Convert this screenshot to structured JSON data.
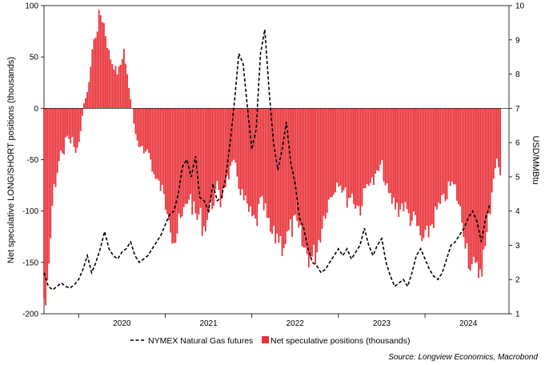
{
  "chart_data": {
    "type": "bar+line",
    "title": "",
    "ylabel_left": "Net speculative LONG/SHORT positions (thousands)",
    "ylabel_right": "USD/MMBtu",
    "ylim_left": [
      -200,
      100
    ],
    "ylim_right": [
      1,
      10
    ],
    "yticks_left": [
      "100",
      "50",
      "0",
      "-50",
      "-100",
      "-150",
      "-200"
    ],
    "yticks_right": [
      "10",
      "9",
      "8",
      "7",
      "6",
      "5",
      "4",
      "3",
      "2",
      "1"
    ],
    "x_range": [
      2019.6,
      2024.97
    ],
    "x_tick_labels": [
      {
        "label": "2020",
        "pos": 2020.5
      },
      {
        "label": "2021",
        "pos": 2021.5
      },
      {
        "label": "2022",
        "pos": 2022.5
      },
      {
        "label": "2023",
        "pos": 2023.5
      },
      {
        "label": "2024",
        "pos": 2024.5
      }
    ],
    "x_year_boundaries": [
      2020,
      2021,
      2022,
      2023,
      2024
    ],
    "series": [
      {
        "name": "Net speculative positions (thousands)",
        "kind": "bar",
        "color": "#e8333a",
        "x_start": 2019.6,
        "x_end": 2024.88,
        "points": [
          [
            2019.6,
            -190
          ],
          [
            2019.63,
            -195
          ],
          [
            2019.66,
            -160
          ],
          [
            2019.7,
            -90
          ],
          [
            2019.73,
            -75
          ],
          [
            2019.76,
            -60
          ],
          [
            2019.8,
            -40
          ],
          [
            2019.83,
            -45
          ],
          [
            2019.86,
            -25
          ],
          [
            2019.9,
            -35
          ],
          [
            2019.93,
            -30
          ],
          [
            2019.96,
            -45
          ],
          [
            2020.0,
            -40
          ],
          [
            2020.03,
            -15
          ],
          [
            2020.06,
            5
          ],
          [
            2020.1,
            15
          ],
          [
            2020.13,
            35
          ],
          [
            2020.16,
            60
          ],
          [
            2020.2,
            75
          ],
          [
            2020.23,
            88
          ],
          [
            2020.26,
            95
          ],
          [
            2020.29,
            85
          ],
          [
            2020.32,
            70
          ],
          [
            2020.35,
            55
          ],
          [
            2020.39,
            45
          ],
          [
            2020.42,
            40
          ],
          [
            2020.45,
            35
          ],
          [
            2020.49,
            45
          ],
          [
            2020.52,
            60
          ],
          [
            2020.55,
            40
          ],
          [
            2020.58,
            20
          ],
          [
            2020.62,
            0
          ],
          [
            2020.65,
            -25
          ],
          [
            2020.69,
            -40
          ],
          [
            2020.73,
            -35
          ],
          [
            2020.77,
            -45
          ],
          [
            2020.8,
            -40
          ],
          [
            2020.84,
            -55
          ],
          [
            2020.88,
            -70
          ],
          [
            2020.92,
            -75
          ],
          [
            2020.96,
            -80
          ],
          [
            2021.0,
            -95
          ],
          [
            2021.04,
            -100
          ],
          [
            2021.08,
            -125
          ],
          [
            2021.12,
            -130
          ],
          [
            2021.16,
            -115
          ],
          [
            2021.2,
            -110
          ],
          [
            2021.24,
            -95
          ],
          [
            2021.28,
            -85
          ],
          [
            2021.32,
            -100
          ],
          [
            2021.36,
            -110
          ],
          [
            2021.4,
            -105
          ],
          [
            2021.44,
            -120
          ],
          [
            2021.48,
            -110
          ],
          [
            2021.52,
            -100
          ],
          [
            2021.56,
            -90
          ],
          [
            2021.6,
            -80
          ],
          [
            2021.64,
            -95
          ],
          [
            2021.68,
            -75
          ],
          [
            2021.72,
            -70
          ],
          [
            2021.76,
            -60
          ],
          [
            2021.8,
            -55
          ],
          [
            2021.85,
            -75
          ],
          [
            2021.9,
            -90
          ],
          [
            2021.95,
            -100
          ],
          [
            2022.0,
            -110
          ],
          [
            2022.05,
            -115
          ],
          [
            2022.1,
            -95
          ],
          [
            2022.15,
            -100
          ],
          [
            2022.2,
            -120
          ],
          [
            2022.25,
            -130
          ],
          [
            2022.3,
            -125
          ],
          [
            2022.35,
            -135
          ],
          [
            2022.4,
            -130
          ],
          [
            2022.45,
            -120
          ],
          [
            2022.5,
            -115
          ],
          [
            2022.55,
            -125
          ],
          [
            2022.6,
            -140
          ],
          [
            2022.65,
            -145
          ],
          [
            2022.7,
            -150
          ],
          [
            2022.75,
            -140
          ],
          [
            2022.8,
            -120
          ],
          [
            2022.85,
            -100
          ],
          [
            2022.9,
            -90
          ],
          [
            2022.95,
            -80
          ],
          [
            2023.0,
            -70
          ],
          [
            2023.05,
            -80
          ],
          [
            2023.1,
            -90
          ],
          [
            2023.15,
            -85
          ],
          [
            2023.2,
            -95
          ],
          [
            2023.25,
            -100
          ],
          [
            2023.3,
            -85
          ],
          [
            2023.35,
            -70
          ],
          [
            2023.4,
            -75
          ],
          [
            2023.45,
            -65
          ],
          [
            2023.5,
            -55
          ],
          [
            2023.55,
            -80
          ],
          [
            2023.6,
            -90
          ],
          [
            2023.65,
            -95
          ],
          [
            2023.7,
            -100
          ],
          [
            2023.75,
            -95
          ],
          [
            2023.8,
            -105
          ],
          [
            2023.85,
            -110
          ],
          [
            2023.9,
            -115
          ],
          [
            2023.95,
            -130
          ],
          [
            2024.0,
            -135
          ],
          [
            2024.05,
            -120
          ],
          [
            2024.1,
            -110
          ],
          [
            2024.15,
            -100
          ],
          [
            2024.2,
            -95
          ],
          [
            2024.25,
            -85
          ],
          [
            2024.3,
            -75
          ],
          [
            2024.35,
            -80
          ],
          [
            2024.4,
            -100
          ],
          [
            2024.45,
            -120
          ],
          [
            2024.5,
            -145
          ],
          [
            2024.55,
            -160
          ],
          [
            2024.6,
            -165
          ],
          [
            2024.65,
            -155
          ],
          [
            2024.7,
            -140
          ],
          [
            2024.75,
            -100
          ],
          [
            2024.8,
            -60
          ],
          [
            2024.84,
            -50
          ],
          [
            2024.88,
            -80
          ]
        ]
      },
      {
        "name": "NYMEX Natural Gas futures",
        "kind": "line",
        "color": "#000000",
        "style": "dashed",
        "points": [
          [
            2019.6,
            2.2
          ],
          [
            2019.65,
            1.8
          ],
          [
            2019.7,
            1.7
          ],
          [
            2019.75,
            1.8
          ],
          [
            2019.8,
            1.9
          ],
          [
            2019.85,
            1.8
          ],
          [
            2019.9,
            1.75
          ],
          [
            2019.95,
            1.85
          ],
          [
            2020.0,
            2.0
          ],
          [
            2020.05,
            2.3
          ],
          [
            2020.1,
            2.7
          ],
          [
            2020.15,
            2.2
          ],
          [
            2020.2,
            2.5
          ],
          [
            2020.25,
            2.9
          ],
          [
            2020.3,
            3.4
          ],
          [
            2020.35,
            2.9
          ],
          [
            2020.4,
            2.7
          ],
          [
            2020.45,
            2.6
          ],
          [
            2020.5,
            2.8
          ],
          [
            2020.55,
            2.9
          ],
          [
            2020.6,
            3.1
          ],
          [
            2020.65,
            2.7
          ],
          [
            2020.7,
            2.5
          ],
          [
            2020.75,
            2.6
          ],
          [
            2020.8,
            2.7
          ],
          [
            2020.85,
            2.9
          ],
          [
            2020.9,
            3.1
          ],
          [
            2020.95,
            3.3
          ],
          [
            2021.0,
            3.6
          ],
          [
            2021.05,
            3.9
          ],
          [
            2021.1,
            4.0
          ],
          [
            2021.15,
            4.5
          ],
          [
            2021.2,
            5.3
          ],
          [
            2021.25,
            5.5
          ],
          [
            2021.3,
            5.0
          ],
          [
            2021.35,
            5.6
          ],
          [
            2021.4,
            4.4
          ],
          [
            2021.45,
            4.3
          ],
          [
            2021.5,
            4.0
          ],
          [
            2021.55,
            4.8
          ],
          [
            2021.6,
            4.3
          ],
          [
            2021.65,
            4.4
          ],
          [
            2021.7,
            5.0
          ],
          [
            2021.75,
            6.0
          ],
          [
            2021.8,
            7.2
          ],
          [
            2021.85,
            8.6
          ],
          [
            2021.9,
            8.3
          ],
          [
            2021.95,
            7.0
          ],
          [
            2022.0,
            5.8
          ],
          [
            2022.05,
            6.4
          ],
          [
            2022.1,
            8.6
          ],
          [
            2022.15,
            9.3
          ],
          [
            2022.2,
            7.5
          ],
          [
            2022.25,
            6.0
          ],
          [
            2022.3,
            5.2
          ],
          [
            2022.35,
            5.8
          ],
          [
            2022.4,
            6.6
          ],
          [
            2022.45,
            5.4
          ],
          [
            2022.5,
            4.8
          ],
          [
            2022.55,
            3.8
          ],
          [
            2022.6,
            3.5
          ],
          [
            2022.65,
            2.9
          ],
          [
            2022.7,
            2.5
          ],
          [
            2022.75,
            2.4
          ],
          [
            2022.8,
            2.2
          ],
          [
            2022.85,
            2.3
          ],
          [
            2022.9,
            2.5
          ],
          [
            2022.95,
            2.7
          ],
          [
            2023.0,
            2.9
          ],
          [
            2023.05,
            2.7
          ],
          [
            2023.1,
            2.9
          ],
          [
            2023.15,
            2.6
          ],
          [
            2023.2,
            2.8
          ],
          [
            2023.25,
            3.0
          ],
          [
            2023.3,
            3.5
          ],
          [
            2023.35,
            3.0
          ],
          [
            2023.4,
            2.7
          ],
          [
            2023.45,
            3.0
          ],
          [
            2023.5,
            3.2
          ],
          [
            2023.55,
            2.5
          ],
          [
            2023.6,
            2.1
          ],
          [
            2023.65,
            1.8
          ],
          [
            2023.7,
            1.9
          ],
          [
            2023.75,
            2.0
          ],
          [
            2023.8,
            1.8
          ],
          [
            2023.85,
            2.2
          ],
          [
            2023.9,
            2.7
          ],
          [
            2023.95,
            2.9
          ],
          [
            2024.0,
            2.6
          ],
          [
            2024.05,
            2.3
          ],
          [
            2024.1,
            2.1
          ],
          [
            2024.15,
            2.0
          ],
          [
            2024.2,
            2.2
          ],
          [
            2024.25,
            2.6
          ],
          [
            2024.3,
            3.0
          ],
          [
            2024.35,
            3.1
          ],
          [
            2024.4,
            3.3
          ],
          [
            2024.45,
            3.5
          ],
          [
            2024.5,
            3.8
          ],
          [
            2024.55,
            4.0
          ],
          [
            2024.6,
            3.7
          ],
          [
            2024.65,
            3.1
          ],
          [
            2024.7,
            3.8
          ],
          [
            2024.75,
            4.2
          ]
        ]
      }
    ],
    "legend": [
      {
        "label": "NYMEX Natural Gas futures",
        "marker": "dashed-line"
      },
      {
        "label": "Net speculative positions (thousands)",
        "marker": "square"
      }
    ],
    "legend_position": "bottom-center",
    "source": "Source: Longview Economics, Macrobond",
    "grid": false
  }
}
